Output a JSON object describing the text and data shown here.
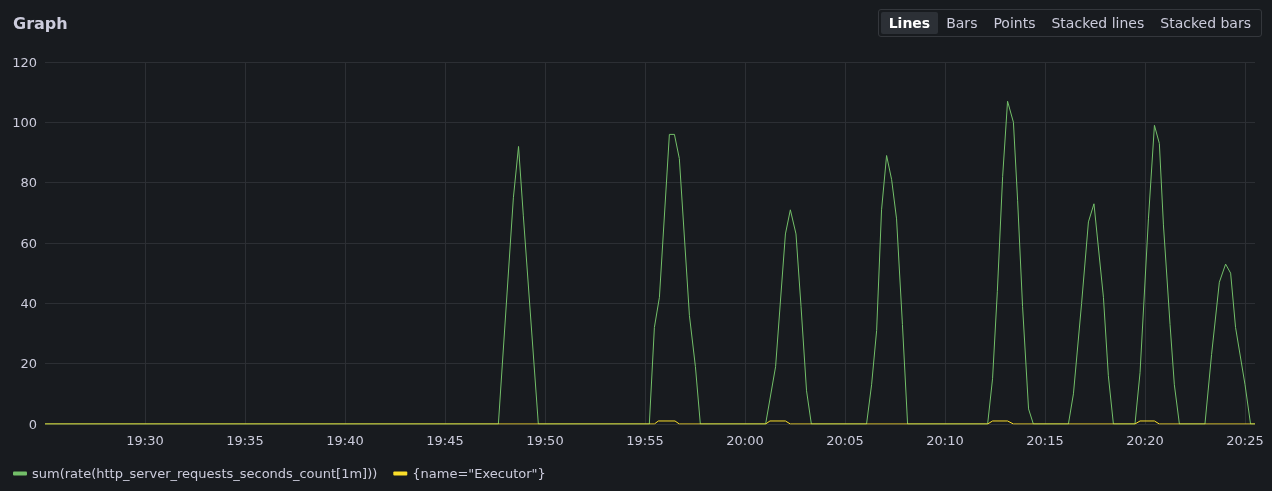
{
  "chart_data": {
    "type": "line",
    "title": "Graph",
    "annotations": [
      "Lines",
      "Bars",
      "Points",
      "Stacked lines",
      "Stacked bars"
    ],
    "xlim": [
      19.4167,
      20.425
    ],
    "xticks": [
      {
        "value": 19.5,
        "label": "19:30"
      },
      {
        "value": 19.5833,
        "label": "19:35"
      },
      {
        "value": 19.6667,
        "label": "19:40"
      },
      {
        "value": 19.75,
        "label": "19:45"
      },
      {
        "value": 19.8333,
        "label": "19:50"
      },
      {
        "value": 19.9167,
        "label": "19:55"
      },
      {
        "value": 20,
        "label": "20:00"
      },
      {
        "value": 20.0833,
        "label": "20:05"
      },
      {
        "value": 20.1667,
        "label": "20:10"
      },
      {
        "value": 20.25,
        "label": "20:15"
      },
      {
        "value": 20.3333,
        "label": "20:20"
      },
      {
        "value": 20.4167,
        "label": "20:25"
      }
    ],
    "ylim": [
      0,
      120
    ],
    "yticks": [
      0,
      20,
      40,
      60,
      80,
      100,
      120
    ],
    "grid": true,
    "legend": "bottom left",
    "marker": "none",
    "line_style": "solid",
    "series": [
      {
        "name": "sum(rate(http_server_requests_seconds_count[1m]))",
        "color": "#73bf69",
        "x": [
          19.4167,
          19.7945,
          19.807,
          19.8113,
          19.8153,
          19.8278,
          19.9203,
          19.9245,
          19.9287,
          19.937,
          19.9412,
          19.9453,
          19.9537,
          19.9587,
          19.9628,
          20.0172,
          20.0255,
          20.0337,
          20.0378,
          20.0425,
          20.0467,
          20.0513,
          20.0553,
          20.1013,
          20.1055,
          20.1097,
          20.1138,
          20.118,
          20.1222,
          20.1263,
          20.1312,
          20.1355,
          20.2022,
          20.2063,
          20.2103,
          20.2147,
          20.2188,
          20.2237,
          20.2272,
          20.2313,
          20.2363,
          20.2403,
          20.2695,
          20.2737,
          20.2805,
          20.2862,
          20.2908,
          20.2987,
          20.3028,
          20.307,
          20.325,
          20.3292,
          20.3362,
          20.3412,
          20.3453,
          20.3487,
          20.3542,
          20.3578,
          20.362,
          20.3833,
          20.3888,
          20.3953,
          20.4005,
          20.4047,
          20.4088,
          20.4167,
          20.4213,
          20.425
        ],
        "values": [
          0,
          0,
          75,
          92,
          69,
          0,
          0,
          32,
          42,
          96,
          96,
          88,
          36,
          19,
          0,
          0,
          19,
          63,
          71,
          63,
          39,
          11,
          0,
          0,
          13,
          31,
          71,
          89,
          81,
          68,
          33,
          0,
          0,
          15,
          44,
          82,
          107,
          100,
          74,
          39,
          5,
          0,
          0,
          10,
          40,
          67,
          73,
          42,
          16,
          0,
          0,
          17,
          68,
          99,
          93,
          66,
          33,
          13,
          0,
          0,
          23,
          47,
          53,
          50,
          32,
          13,
          0,
          0
        ]
      },
      {
        "name": "{name=\"Executor\"}",
        "color": "#fade2a",
        "x": [
          19.4167,
          19.9245,
          19.9278,
          19.9417,
          19.9453,
          20.0172,
          20.0208,
          20.0337,
          20.0378,
          20.2022,
          20.2063,
          20.2188,
          20.2237,
          20.325,
          20.3292,
          20.3412,
          20.3453,
          20.425
        ],
        "values": [
          0,
          0,
          1,
          1,
          0,
          0,
          1,
          1,
          0,
          0,
          1,
          1,
          0,
          0,
          1,
          1,
          0,
          0
        ]
      }
    ]
  }
}
